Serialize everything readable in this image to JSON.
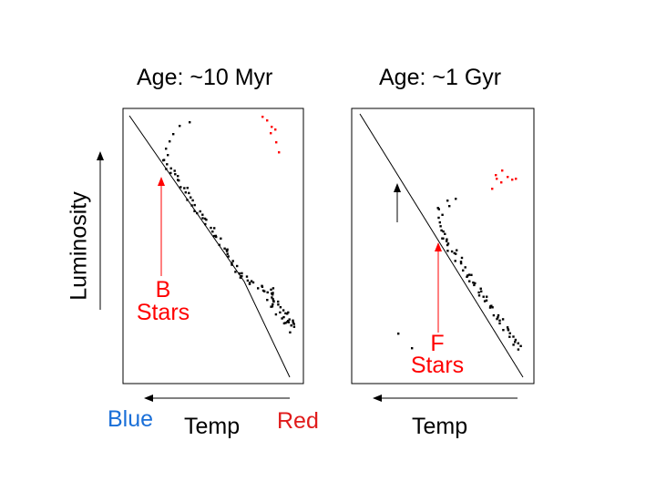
{
  "panels": [
    {
      "title": "Age: ~10 Myr",
      "callout": {
        "line1": "B",
        "line2": "Stars"
      }
    },
    {
      "title": "Age: ~1 Gyr",
      "callout": {
        "line1": "F",
        "line2": "Stars"
      }
    }
  ],
  "luminosity_label": "Luminosity",
  "temp_label": "Temp",
  "blue_label": "Blue",
  "red_label": "Red",
  "colors": {
    "text": "#000000",
    "callout": "#ff0000",
    "blue": "#1a6fd8",
    "red": "#e01b1b"
  }
}
